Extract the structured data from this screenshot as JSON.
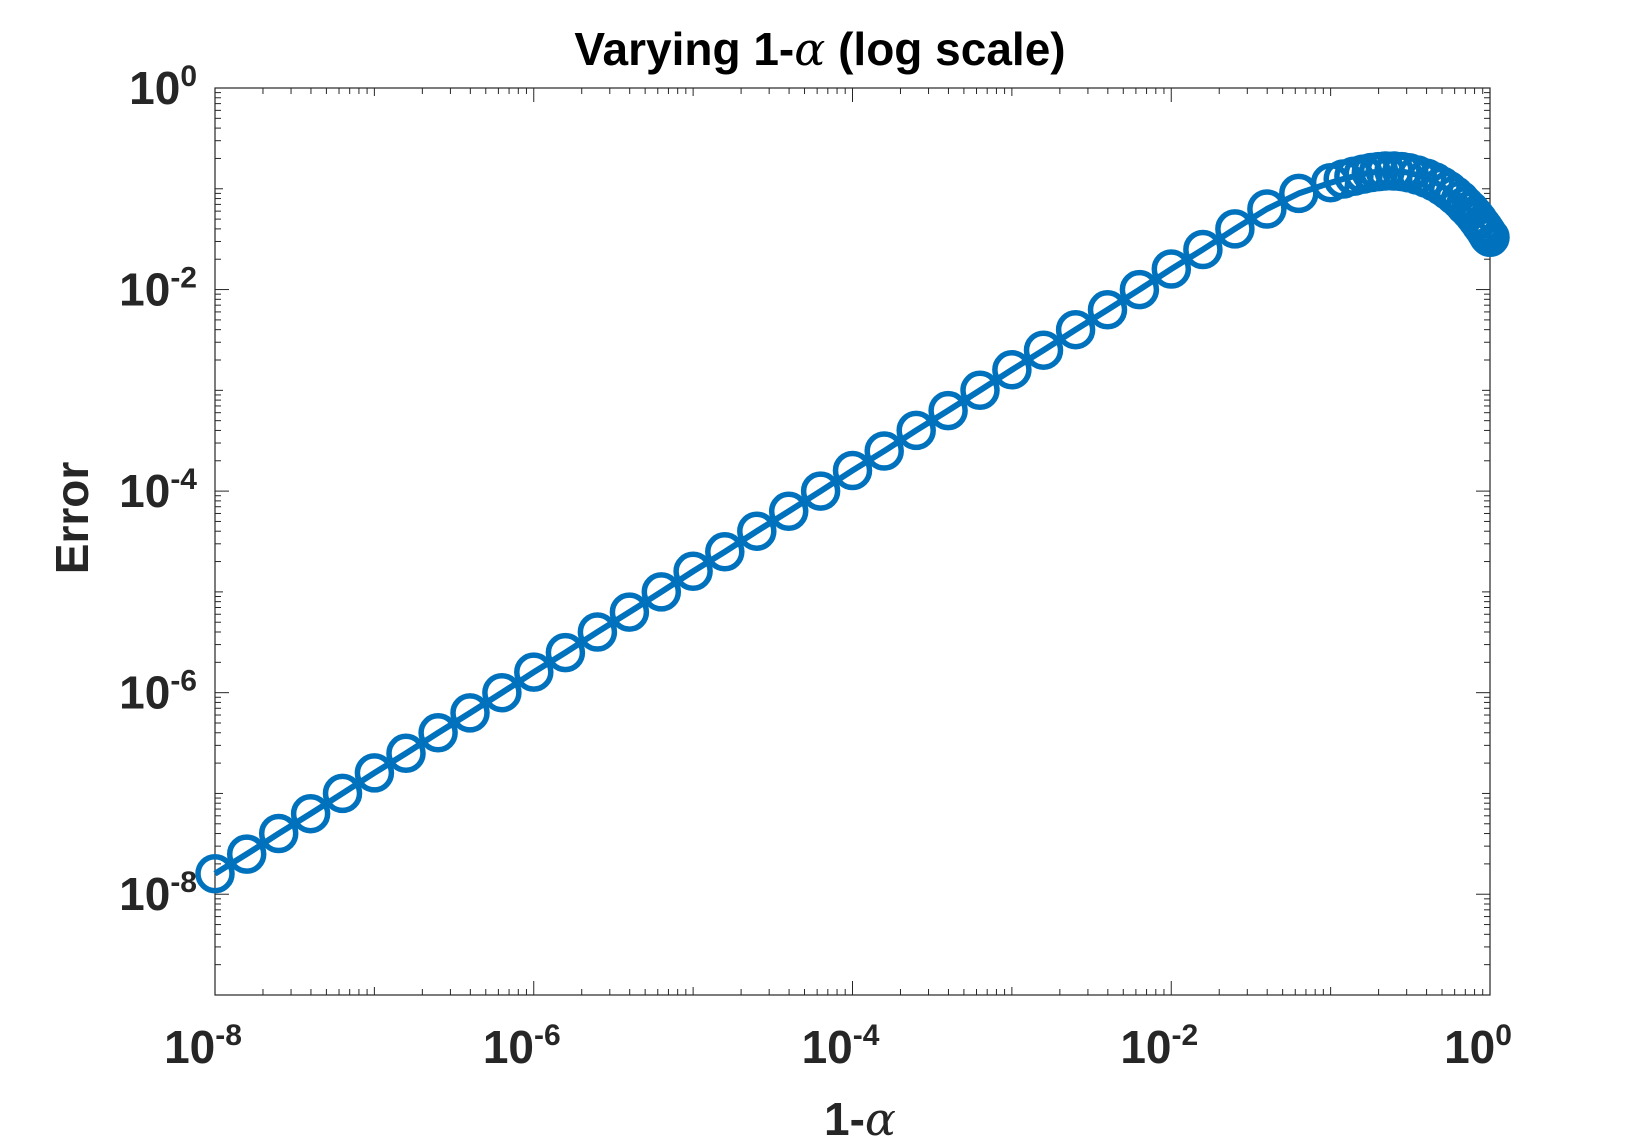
{
  "chart_data": {
    "type": "line",
    "title": {
      "prefix": "Varying 1-",
      "symbol": "α",
      "suffix": " (log scale)"
    },
    "xlabel": {
      "prefix": "1-",
      "symbol": "α"
    },
    "ylabel": "Error",
    "xscale": "log",
    "yscale": "log",
    "xlim": [
      1e-08,
      1
    ],
    "ylim": [
      1e-09,
      1
    ],
    "x_ticks": [
      {
        "base": "10",
        "exp": "-8"
      },
      {
        "base": "10",
        "exp": "-6"
      },
      {
        "base": "10",
        "exp": "-4"
      },
      {
        "base": "10",
        "exp": "-2"
      },
      {
        "base": "10",
        "exp": "0"
      }
    ],
    "y_ticks": [
      {
        "base": "10",
        "exp": "0"
      },
      {
        "base": "10",
        "exp": "-2"
      },
      {
        "base": "10",
        "exp": "-4"
      },
      {
        "base": "10",
        "exp": "-6"
      },
      {
        "base": "10",
        "exp": "-8"
      }
    ],
    "grid": false,
    "box": true,
    "marker": "circle-open",
    "color": "#0072BD",
    "series": [
      {
        "x": [
          1e-08,
          1.58e-08,
          2.51e-08,
          3.98e-08,
          6.31e-08,
          1e-07,
          1.58e-07,
          2.51e-07,
          3.98e-07,
          6.31e-07,
          1e-06,
          1.58e-06,
          2.51e-06,
          3.98e-06,
          6.31e-06,
          1e-05,
          1.58e-05,
          2.51e-05,
          3.98e-05,
          6.31e-05,
          0.0001,
          0.000158,
          0.000251,
          0.000398,
          0.000631,
          0.001,
          0.00158,
          0.00251,
          0.00398,
          0.00631,
          0.01,
          0.0158,
          0.0251,
          0.0398,
          0.0631,
          0.1,
          0.12,
          0.14,
          0.16,
          0.18,
          0.2,
          0.22,
          0.25,
          0.28,
          0.31,
          0.35,
          0.4,
          0.45,
          0.5,
          0.55,
          0.6,
          0.65,
          0.7,
          0.75,
          0.8,
          0.84,
          0.88,
          0.91,
          0.94,
          0.96,
          0.98,
          1.0
        ],
        "y": [
          1.6e-08,
          2.5e-08,
          4e-08,
          6.3e-08,
          1e-07,
          1.6e-07,
          2.5e-07,
          4e-07,
          6.3e-07,
          1e-06,
          1.6e-06,
          2.5e-06,
          4e-06,
          6.3e-06,
          1e-05,
          1.6e-05,
          2.5e-05,
          4e-05,
          6.3e-05,
          0.0001,
          0.00016,
          0.00025,
          0.0004,
          0.00063,
          0.001,
          0.0016,
          0.0025,
          0.004,
          0.0063,
          0.01,
          0.016,
          0.025,
          0.04,
          0.063,
          0.09,
          0.115,
          0.125,
          0.133,
          0.14,
          0.145,
          0.148,
          0.15,
          0.15,
          0.148,
          0.144,
          0.137,
          0.127,
          0.117,
          0.106,
          0.096,
          0.086,
          0.077,
          0.068,
          0.061,
          0.054,
          0.049,
          0.044,
          0.041,
          0.038,
          0.036,
          0.034,
          0.033
        ]
      }
    ]
  }
}
